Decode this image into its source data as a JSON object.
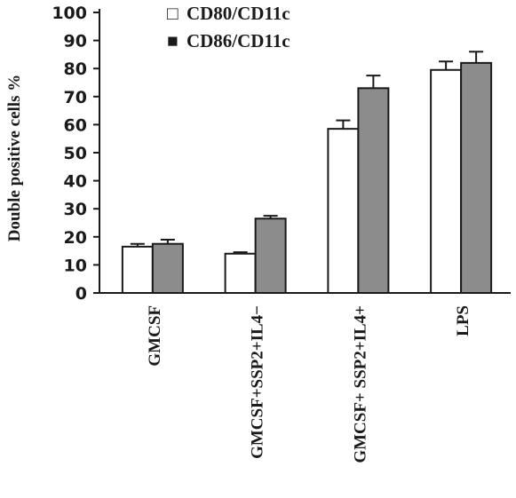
{
  "chart_data": {
    "type": "bar",
    "title": "",
    "xlabel": "",
    "ylabel": "Double positive cells %",
    "ylim": [
      0,
      100
    ],
    "yticks": [
      0,
      10,
      20,
      30,
      40,
      50,
      60,
      70,
      80,
      90,
      100
    ],
    "categories": [
      "GMCSF",
      "GMCSF+SSP2+IL4−",
      "GMCSF+ SSP2+IL4+",
      "LPS"
    ],
    "series": [
      {
        "name": "CD80/CD11c",
        "color": "#ffffff",
        "values": [
          16.5,
          14,
          58.5,
          79.5
        ],
        "errors": [
          1,
          0.5,
          3,
          3
        ]
      },
      {
        "name": "CD86/CD11c",
        "color": "#8c8c8c",
        "values": [
          17.5,
          26.5,
          73,
          82
        ],
        "errors": [
          1.5,
          1,
          4.5,
          4
        ]
      }
    ],
    "legend": {
      "placement": "top",
      "entries": [
        {
          "symbol": "□",
          "label": "CD80/CD11c"
        },
        {
          "symbol": "■",
          "label": "CD86/CD11c"
        }
      ]
    },
    "grid": false
  }
}
